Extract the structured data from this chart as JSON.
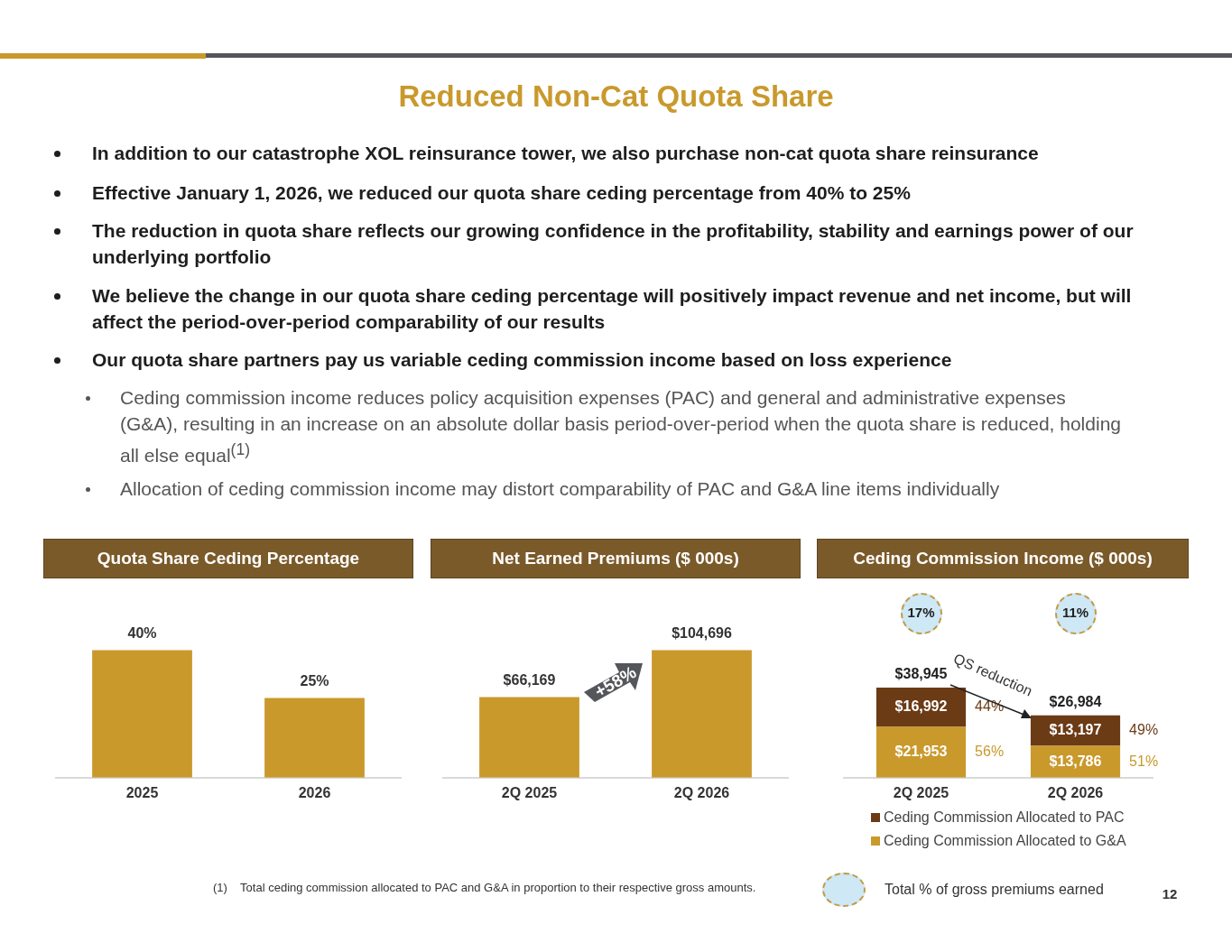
{
  "chart_data": [
    {
      "type": "other",
      "title": "Reduced Non-Cat Quota Share",
      "annotations": [
        "In addition to our catastrophe XOL reinsurance tower, we also purchase non-cat quota share reinsurance",
        "Effective January 1, 2026, we reduced our quota share ceding percentage from 40% to 25%",
        "The reduction in quota share reflects our growing confidence in the profitability, stability and earnings power of our underlying portfolio",
        "We believe the change in our quota share ceding percentage will positively impact revenue and net income, but will affect the period-over-period comparability of our results",
        "Our quota share partners pay us variable ceding commission income based on loss experience",
        "Ceding commission income reduces policy acquisition expenses (PAC) and general and administrative expenses (G&A), resulting in an increase on an absolute dollar basis period-over-period when the quota share is reduced, holding all else equal$^{(1)}$",
        "Allocation of ceding commission income may distort comparability of PAC and G&A line items individually",
        "(1)    Total ceding commission allocated to PAC and G&A in proportion to their respective gross amounts.",
        "12"
      ]
    },
    {
      "type": "bar",
      "title": "Quota Share Ceding Percentage",
      "categories": [
        "2025",
        "2026"
      ],
      "values": [
        40,
        25
      ],
      "color": "#c9992c",
      "value_labels": [
        "40%",
        "25%"
      ],
      "tick_labels": "x"
    },
    {
      "type": "bar",
      "title": "Net Earned Premiums ($ 000s)",
      "categories": [
        "2Q 2025",
        "2Q 2026"
      ],
      "values": [
        66169,
        104696
      ],
      "color": "#c9992c",
      "value_labels": [
        "$66,169",
        "$104,696"
      ],
      "tick_labels": "x",
      "annotations": [
        "+58%"
      ]
    },
    {
      "type": "bar",
      "title": "Ceding Commission Income ($ 000s)",
      "categories": [
        "2Q 2025",
        "2Q 2026"
      ],
      "stacked": true,
      "legend": "bottom",
      "tick_labels": "x",
      "series": [
        {
          "name": "Ceding Commission Allocated to G&A",
          "color": "#c9992c",
          "values": [
            21953,
            13786
          ],
          "value_labels": [
            "$21,953",
            "$13,786"
          ]
        },
        {
          "name": "Ceding Commission Allocated to PAC",
          "color": "#6b3b16",
          "values": [
            16992,
            13197
          ],
          "value_labels": [
            "$16,992",
            "$13,197"
          ]
        }
      ],
      "totals": [
        "$38,945",
        "$26,984"
      ],
      "annotations": [
        "17%",
        "11%",
        "44%",
        "56%",
        "49%",
        "51%",
        "QS reduction",
        "Total % of gross premiums earned"
      ]
    }
  ]
}
